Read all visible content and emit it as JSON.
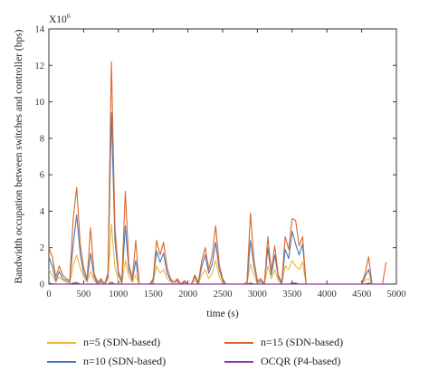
{
  "chart_data": {
    "type": "line",
    "scale_note": "X10",
    "scale_exp": "6",
    "xlabel": "time (s)",
    "ylabel": "Bandwidth occupation between switches and controller (bps)",
    "xlim": [
      0,
      5000
    ],
    "ylim": [
      0,
      14
    ],
    "xticks": [
      0,
      500,
      1000,
      1500,
      2000,
      2500,
      3000,
      3500,
      4000,
      4500,
      5000
    ],
    "yticks": [
      0,
      2,
      4,
      6,
      8,
      10,
      12,
      14
    ],
    "x": [
      0,
      50,
      100,
      150,
      200,
      250,
      300,
      350,
      400,
      450,
      500,
      550,
      600,
      650,
      700,
      750,
      800,
      850,
      900,
      950,
      1000,
      1050,
      1100,
      1150,
      1200,
      1250,
      1300,
      1350,
      1400,
      1450,
      1500,
      1550,
      1600,
      1650,
      1700,
      1750,
      1800,
      1850,
      1900,
      1950,
      2000,
      2050,
      2100,
      2150,
      2200,
      2250,
      2300,
      2350,
      2400,
      2450,
      2500,
      2550,
      2600,
      2650,
      2700,
      2750,
      2800,
      2850,
      2900,
      2950,
      3000,
      3050,
      3100,
      3150,
      3200,
      3250,
      3300,
      3350,
      3400,
      3450,
      3500,
      3550,
      3600,
      3650,
      3700,
      3750,
      3800,
      3850,
      3900,
      3950,
      4000,
      4050,
      4100,
      4150,
      4200,
      4250,
      4300,
      4350,
      4400,
      4450,
      4500,
      4550,
      4600,
      4650,
      4700,
      4750,
      4800,
      4850
    ],
    "series": [
      {
        "name": "n=5 (SDN-based)",
        "color": "#f0b43c",
        "values": [
          0.8,
          0.5,
          0.1,
          0.4,
          0.2,
          0.1,
          0.0,
          1.0,
          1.6,
          0.9,
          0.4,
          0.1,
          0.7,
          0.2,
          0.0,
          0.1,
          0.0,
          0.2,
          3.3,
          0.9,
          0.2,
          0.0,
          1.3,
          0.4,
          0.1,
          0.5,
          0.0,
          0.0,
          0.0,
          0.0,
          0.1,
          1.0,
          0.6,
          0.8,
          0.3,
          0.1,
          0.0,
          0.1,
          0.0,
          0.1,
          0.0,
          0.0,
          0.2,
          0.0,
          0.5,
          0.8,
          0.3,
          0.6,
          1.3,
          0.4,
          0.1,
          0.0,
          0.0,
          0.0,
          0.0,
          0.0,
          0.0,
          0.0,
          1.1,
          0.5,
          0.0,
          0.1,
          0.0,
          1.0,
          0.3,
          0.8,
          0.2,
          0.0,
          1.0,
          0.8,
          1.3,
          1.0,
          0.8,
          1.2,
          0.0,
          0.0,
          0.0,
          0.0,
          0.0,
          0.0,
          0.0,
          0.0,
          0.0,
          0.0,
          0.0,
          0.0,
          0.0,
          0.0,
          0.0,
          0.0,
          0.0,
          0.2,
          0.3,
          0.0,
          0.0,
          0.0,
          0.0,
          0.0
        ]
      },
      {
        "name": "n=10 (SDN-based)",
        "color": "#4a78b8",
        "values": [
          1.5,
          1.0,
          0.2,
          0.7,
          0.3,
          0.2,
          0.1,
          2.2,
          3.8,
          1.7,
          0.6,
          0.2,
          1.7,
          0.4,
          0.0,
          0.2,
          0.0,
          0.4,
          9.4,
          2.4,
          0.5,
          0.1,
          3.2,
          0.8,
          0.2,
          1.3,
          0.0,
          0.0,
          0.0,
          0.0,
          0.2,
          1.8,
          1.2,
          1.7,
          0.6,
          0.2,
          0.1,
          0.2,
          0.0,
          0.1,
          0.0,
          0.0,
          0.4,
          0.0,
          1.0,
          1.6,
          0.6,
          1.1,
          2.3,
          0.8,
          0.2,
          0.0,
          0.0,
          0.0,
          0.0,
          0.0,
          0.0,
          0.0,
          2.4,
          1.0,
          0.1,
          0.2,
          0.0,
          2.0,
          0.5,
          1.6,
          0.4,
          0.0,
          1.9,
          1.4,
          2.9,
          2.2,
          1.6,
          2.2,
          0.0,
          0.0,
          0.0,
          0.0,
          0.0,
          0.0,
          0.0,
          0.0,
          0.0,
          0.0,
          0.0,
          0.0,
          0.0,
          0.0,
          0.0,
          0.0,
          0.0,
          0.4,
          0.8,
          0.0,
          0.0,
          0.0,
          0.0,
          0.0
        ]
      },
      {
        "name": "n=15 (SDN-based)",
        "color": "#d9682a",
        "values": [
          2.0,
          1.5,
          0.4,
          1.0,
          0.5,
          0.3,
          0.2,
          3.6,
          5.3,
          2.2,
          0.9,
          0.3,
          3.1,
          0.6,
          0.1,
          0.3,
          0.0,
          0.6,
          12.2,
          3.1,
          0.7,
          0.2,
          5.1,
          1.1,
          0.3,
          2.4,
          0.0,
          0.0,
          0.0,
          0.0,
          0.3,
          2.4,
          1.6,
          2.3,
          0.9,
          0.3,
          0.1,
          0.3,
          0.0,
          0.2,
          0.0,
          0.0,
          0.5,
          0.1,
          1.3,
          2.0,
          0.8,
          1.6,
          3.2,
          1.1,
          0.3,
          0.0,
          0.0,
          0.0,
          0.0,
          0.0,
          0.0,
          0.1,
          3.9,
          1.3,
          0.2,
          0.3,
          0.0,
          2.6,
          0.7,
          2.1,
          0.5,
          0.1,
          2.6,
          1.9,
          3.6,
          3.5,
          2.1,
          2.6,
          0.0,
          0.0,
          0.0,
          0.0,
          0.0,
          0.0,
          0.0,
          0.0,
          0.0,
          0.0,
          0.0,
          0.0,
          0.0,
          0.0,
          0.0,
          0.0,
          0.0,
          0.6,
          1.5,
          0.0,
          0.0,
          0.0,
          0.0,
          1.2
        ]
      },
      {
        "name": "OCQR (P4-based)",
        "color": "#8a3fa8",
        "values": [
          0.05,
          0.02,
          0.0,
          0.0,
          0.0,
          0.0,
          0.0,
          0.05,
          0.08,
          0.0,
          0.0,
          0.0,
          0.0,
          0.0,
          0.0,
          0.0,
          0.0,
          0.0,
          0.1,
          0.0,
          0.0,
          0.0,
          0.0,
          0.0,
          0.0,
          0.0,
          0.0,
          0.0,
          0.0,
          0.0,
          0.0,
          0.0,
          0.0,
          0.0,
          0.0,
          0.0,
          0.0,
          0.0,
          0.0,
          0.0,
          0.0,
          0.0,
          0.0,
          0.0,
          0.0,
          0.0,
          0.0,
          0.0,
          0.0,
          0.0,
          0.0,
          0.0,
          0.0,
          0.0,
          0.0,
          0.0,
          0.0,
          0.0,
          0.05,
          0.0,
          0.0,
          0.0,
          0.0,
          0.0,
          0.0,
          0.0,
          0.0,
          0.0,
          0.0,
          0.0,
          0.05,
          0.05,
          0.0,
          0.0,
          0.0,
          0.0,
          0.0,
          0.0,
          0.0,
          0.0,
          0.0,
          0.0,
          0.0,
          0.0,
          0.0,
          0.0,
          0.0,
          0.0,
          0.0,
          0.0,
          0.0,
          0.0,
          0.05,
          0.0,
          0.0,
          0.0,
          0.0,
          0.0
        ]
      }
    ],
    "legend_position": "bottom",
    "grid": false
  }
}
